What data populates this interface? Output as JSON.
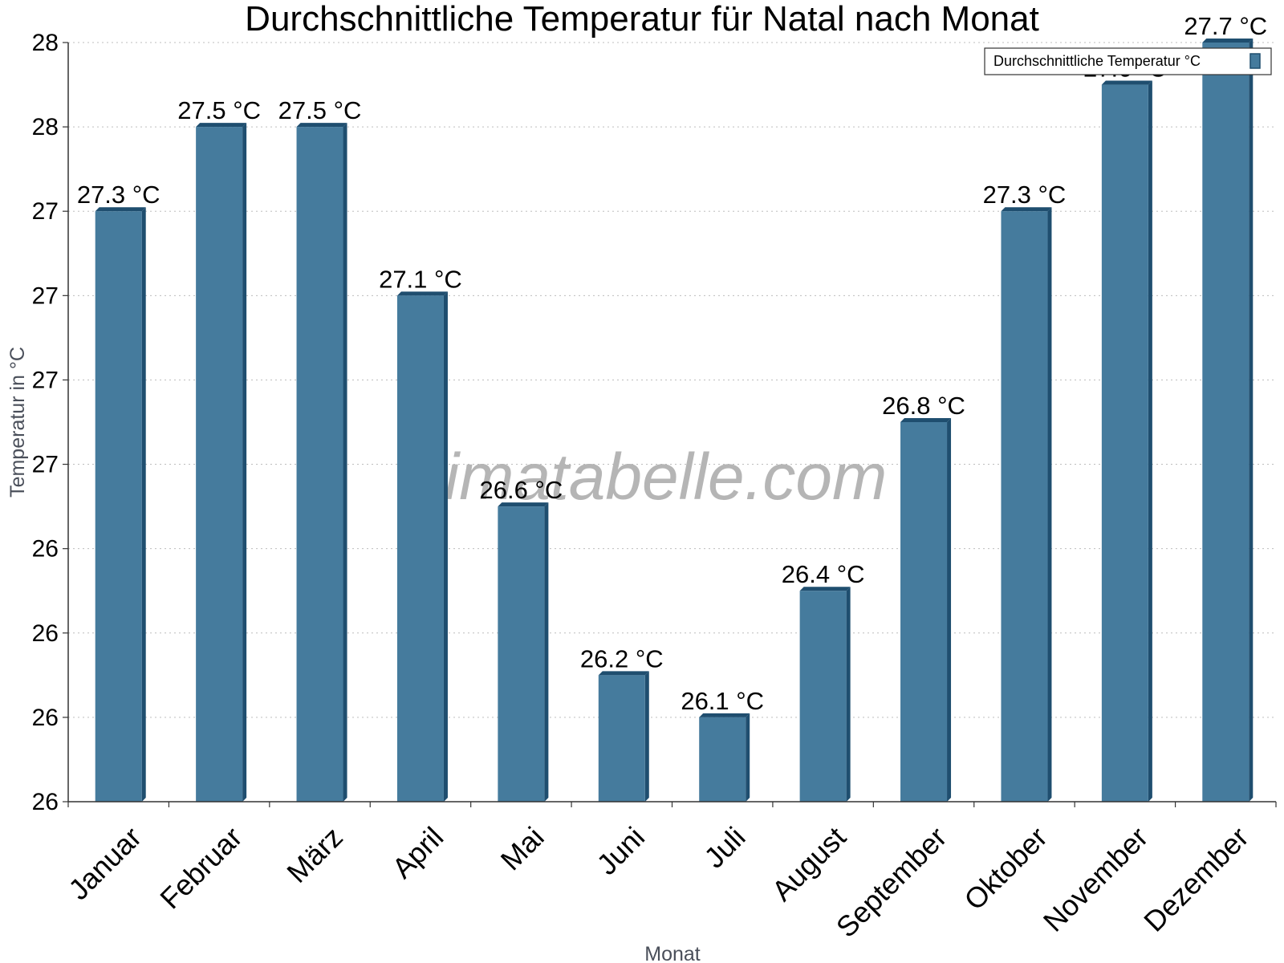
{
  "chart_data": {
    "type": "bar",
    "title": "Durchschnittliche Temperatur für Natal nach Monat",
    "xlabel": "Monat",
    "ylabel": "Temperatur in °C",
    "categories": [
      "Januar",
      "Februar",
      "März",
      "April",
      "Mai",
      "Juni",
      "Juli",
      "August",
      "September",
      "Oktober",
      "November",
      "Dezember"
    ],
    "series": [
      {
        "name": "Durchschnittliche Temperatur °C",
        "values": [
          27.3,
          27.5,
          27.5,
          27.1,
          26.6,
          26.2,
          26.1,
          26.4,
          26.8,
          27.3,
          27.6,
          27.7
        ],
        "labels": [
          "27.3 °C",
          "27.5 °C",
          "27.5 °C",
          "27.1 °C",
          "26.6 °C",
          "26.2 °C",
          "26.1 °C",
          "26.4 °C",
          "26.8 °C",
          "27.3 °C",
          "27.6 °C",
          "27.7 °C"
        ],
        "color": "#457b9d",
        "edge_color": "#1f4e6f"
      }
    ],
    "ylim": [
      25.9,
      27.7
    ],
    "yticks": [
      25.9,
      26.1,
      26.3,
      26.5,
      26.7,
      26.9,
      27.1,
      27.3,
      27.5,
      27.7
    ],
    "ytick_labels": [
      "26",
      "26",
      "26",
      "26",
      "27",
      "27",
      "27",
      "27",
      "28",
      "28"
    ],
    "grid": true,
    "legend_position": "top-right",
    "watermark": "klimatabelle.com"
  }
}
